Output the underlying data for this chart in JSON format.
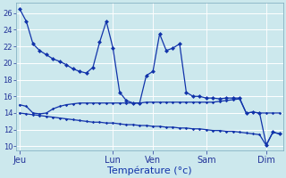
{
  "background_color": "#cce8ed",
  "grid_color": "#ffffff",
  "line_color": "#1133aa",
  "xlabel": "Température (°c)",
  "xlabel_color": "#1133aa",
  "ylabel_ticks": [
    10,
    12,
    14,
    16,
    18,
    20,
    22,
    24,
    26
  ],
  "ylim": [
    9.5,
    27.2
  ],
  "day_labels": [
    "Jeu",
    "Lun",
    "Ven",
    "Sam",
    "Dim"
  ],
  "day_positions": [
    0,
    14,
    20,
    28,
    37
  ],
  "n_points": 40,
  "series1_x": [
    0,
    1,
    2,
    3,
    4,
    5,
    6,
    7,
    8,
    9,
    10,
    11,
    12,
    13,
    14,
    15,
    16,
    17,
    18,
    19,
    20,
    21,
    22,
    23,
    24,
    25,
    26,
    27,
    28,
    29,
    30,
    31,
    32,
    33,
    34,
    35,
    36,
    37,
    38,
    39
  ],
  "series1_y": [
    26.5,
    25.0,
    22.3,
    21.5,
    21.0,
    20.5,
    20.2,
    19.8,
    19.3,
    19.0,
    18.8,
    19.5,
    22.5,
    25.0,
    21.8,
    16.5,
    15.5,
    15.2,
    15.2,
    18.5,
    19.0,
    23.5,
    21.5,
    21.8,
    22.3,
    16.5,
    16.0,
    16.0,
    15.8,
    15.8,
    15.7,
    15.8,
    15.8,
    15.8,
    14.0,
    14.1,
    14.0,
    10.2,
    11.7,
    11.5
  ],
  "series2_x": [
    0,
    1,
    2,
    3,
    4,
    5,
    6,
    7,
    8,
    9,
    10,
    11,
    12,
    13,
    14,
    15,
    16,
    17,
    18,
    19,
    20,
    21,
    22,
    23,
    24,
    25,
    26,
    27,
    28,
    29,
    30,
    31,
    32,
    33,
    34,
    35,
    36,
    37,
    38,
    39
  ],
  "series2_y": [
    15.0,
    14.8,
    14.0,
    13.9,
    14.0,
    14.5,
    14.8,
    15.0,
    15.1,
    15.2,
    15.2,
    15.2,
    15.2,
    15.2,
    15.2,
    15.2,
    15.2,
    15.2,
    15.2,
    15.3,
    15.3,
    15.3,
    15.3,
    15.3,
    15.3,
    15.3,
    15.3,
    15.3,
    15.3,
    15.3,
    15.4,
    15.5,
    15.6,
    15.7,
    14.0,
    14.1,
    14.0,
    14.0,
    14.0,
    14.0
  ],
  "series3_x": [
    0,
    1,
    2,
    3,
    4,
    5,
    6,
    7,
    8,
    9,
    10,
    11,
    12,
    13,
    14,
    15,
    16,
    17,
    18,
    19,
    20,
    21,
    22,
    23,
    24,
    25,
    26,
    27,
    28,
    29,
    30,
    31,
    32,
    33,
    34,
    35,
    36,
    37,
    38,
    39
  ],
  "series3_y": [
    14.0,
    13.9,
    13.8,
    13.7,
    13.6,
    13.5,
    13.4,
    13.3,
    13.2,
    13.1,
    13.0,
    12.9,
    12.9,
    12.8,
    12.8,
    12.7,
    12.6,
    12.6,
    12.5,
    12.5,
    12.4,
    12.4,
    12.3,
    12.3,
    12.2,
    12.2,
    12.1,
    12.1,
    12.0,
    11.9,
    11.9,
    11.8,
    11.8,
    11.7,
    11.6,
    11.5,
    11.4,
    10.1,
    11.7,
    11.5
  ],
  "xlim": [
    -0.5,
    39.5
  ],
  "vline_color": "#5588aa",
  "vline_positions": [
    0,
    14,
    20,
    28,
    37
  ],
  "tick_label_color": "#223399",
  "ylabel_fontsize": 6,
  "xlabel_fontsize": 8,
  "xtick_fontsize": 7
}
